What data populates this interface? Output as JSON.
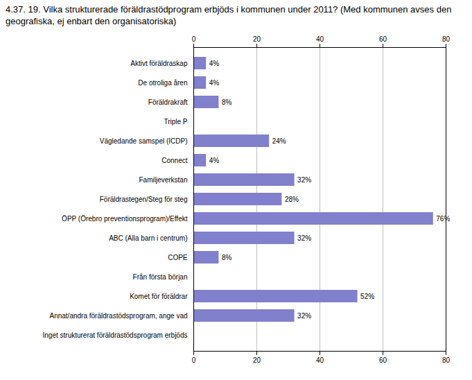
{
  "chart_data": {
    "type": "bar",
    "orientation": "horizontal",
    "title": "4.37. 19. Vilka strukturerade föräldrastödprogram erbjöds i kommunen under 2011? (Med kommunen avses den geografiska, ej enbart den organisatoriska)",
    "categories": [
      "Inget strukturerat föräldrastödsprogram erbjöds",
      "Annat/andra föräldrastödsprogram, ange vad",
      "Komet för föräldrar",
      "Från första början",
      "COPE",
      "ABC (Alla barn i centrum)",
      "ÖPP (Örebro preventionsprogram)/Effekt",
      "Föräldrastegen/Steg för steg",
      "Familjeverkstan",
      "Connect",
      "Vägledande samspel (ICDP)",
      "Triple P",
      "Föräldrakraft",
      "De otroliga åren",
      "Aktivt föräldraskap"
    ],
    "values": [
      0,
      32,
      52,
      0,
      8,
      32,
      76,
      28,
      32,
      4,
      24,
      0,
      8,
      4,
      4
    ],
    "value_labels": [
      null,
      "32%",
      "52%",
      null,
      "8%",
      "32%",
      "76%",
      "28%",
      "32%",
      "4%",
      "24%",
      null,
      "8%",
      "4%",
      "4%"
    ],
    "data_labels": true,
    "color": "#8080cc",
    "xlim": [
      0,
      80
    ],
    "xticks": [
      0,
      20,
      40,
      60,
      80
    ],
    "grid": true
  }
}
